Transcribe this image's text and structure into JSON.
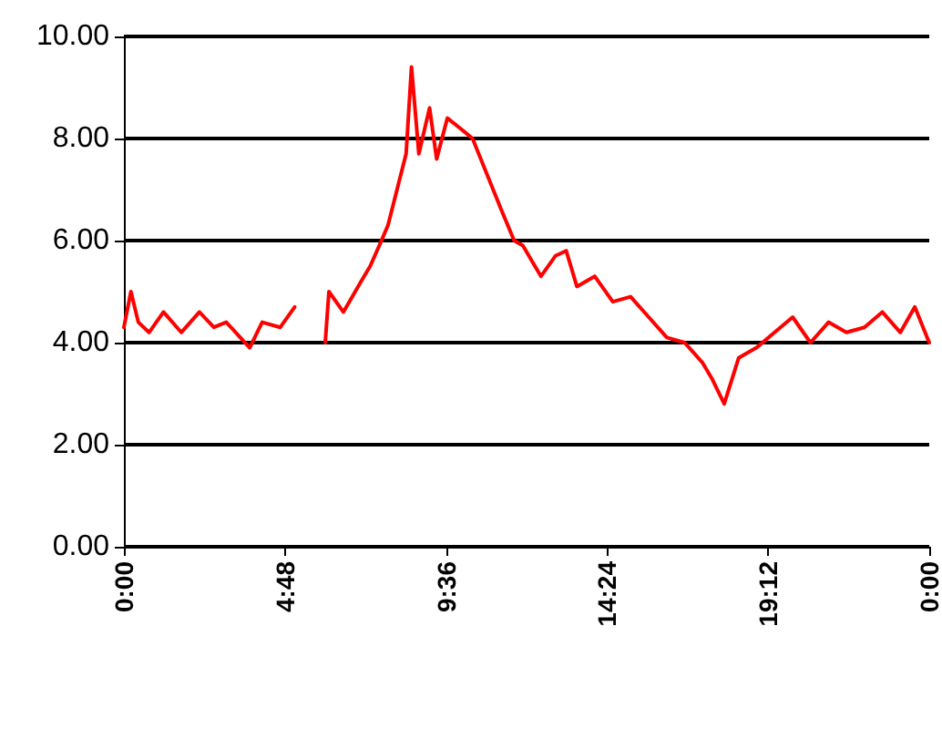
{
  "chart_data": {
    "type": "line",
    "x": [
      0,
      0.21,
      0.43,
      0.75,
      1.18,
      1.71,
      2.25,
      2.68,
      3.05,
      3.75,
      4.12,
      4.66,
      5.09,
      5.5,
      6.0,
      6.11,
      6.54,
      7.07,
      7.34,
      7.61,
      7.87,
      8.14,
      8.41,
      8.57,
      8.79,
      9.11,
      9.32,
      9.64,
      10.02,
      10.39,
      10.82,
      11.25,
      11.63,
      11.89,
      12.16,
      12.43,
      12.86,
      13.18,
      13.5,
      14.03,
      14.57,
      15.1,
      15.64,
      16.18,
      16.71,
      17.25,
      17.52,
      17.89,
      18.32,
      18.85,
      19.39,
      19.93,
      20.46,
      21.0,
      21.53,
      22.07,
      22.6,
      23.14,
      23.57,
      24
    ],
    "series": [
      {
        "color": "#ff0000",
        "values": [
          4.3,
          5.0,
          4.4,
          4.2,
          4.6,
          4.2,
          4.6,
          4.3,
          4.4,
          3.9,
          4.4,
          4.3,
          4.7,
          null,
          4.0,
          5.0,
          4.6,
          5.2,
          5.5,
          5.9,
          6.3,
          7.0,
          7.7,
          9.4,
          7.7,
          8.6,
          7.6,
          8.4,
          8.2,
          8.0,
          7.3,
          6.6,
          6.0,
          5.9,
          5.6,
          5.3,
          5.7,
          5.8,
          5.1,
          5.3,
          4.8,
          4.9,
          4.5,
          4.1,
          4.0,
          3.6,
          3.3,
          2.8,
          3.7,
          3.9,
          4.2,
          4.5,
          4.0,
          4.4,
          4.2,
          4.3,
          4.6,
          4.2,
          4.7,
          4.0
        ]
      }
    ],
    "xlim": [
      0,
      24
    ],
    "xticks": [
      {
        "value": 0,
        "label": "0:00"
      },
      {
        "value": 4.8,
        "label": "4:48"
      },
      {
        "value": 9.6,
        "label": "9:36"
      },
      {
        "value": 14.4,
        "label": "14:24"
      },
      {
        "value": 19.2,
        "label": "19:12"
      },
      {
        "value": 24,
        "label": "0:00"
      }
    ],
    "ylim": [
      0,
      10
    ],
    "yticks": [
      {
        "value": 0,
        "label": "0.00"
      },
      {
        "value": 2,
        "label": "2.00"
      },
      {
        "value": 4,
        "label": "4.00"
      },
      {
        "value": 6,
        "label": "6.00"
      },
      {
        "value": 8,
        "label": "8.00"
      },
      {
        "value": 10,
        "label": "10.00"
      }
    ],
    "grid": "y",
    "marker": "none",
    "line_style": "solid"
  }
}
